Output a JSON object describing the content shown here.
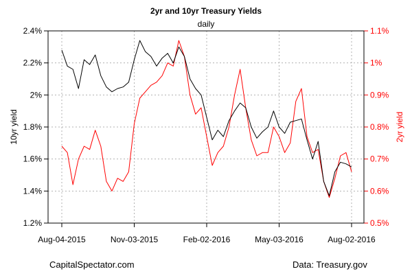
{
  "chart_data": {
    "type": "line",
    "title": "2yr and 10yr Treasury Yields",
    "subtitle": "daily",
    "ylabel_left": "10yr yield",
    "ylabel_right": "2yr yield",
    "grid": true,
    "x_ticks": [
      "Aug-04-2015",
      "Nov-03-2015",
      "Feb-02-2016",
      "May-03-2016",
      "Aug-02-2016"
    ],
    "y_left": {
      "range": [
        1.2,
        2.4
      ],
      "ticks": [
        "1.2%",
        "1.4%",
        "1.6%",
        "1.8%",
        "2%",
        "2.2%",
        "2.4%"
      ],
      "tick_values": [
        1.2,
        1.4,
        1.6,
        1.8,
        2.0,
        2.2,
        2.4
      ]
    },
    "y_right": {
      "range": [
        0.5,
        1.1
      ],
      "ticks": [
        "0.5%",
        "0.6%",
        "0.7%",
        "0.8%",
        "0.9%",
        "1%",
        "1.1%"
      ],
      "tick_values": [
        0.5,
        0.6,
        0.7,
        0.8,
        0.9,
        1.0,
        1.1
      ]
    },
    "series": [
      {
        "name": "10yr yield",
        "axis": "left",
        "color": "#000000",
        "dates": [
          "2015-08-04",
          "2015-08-11",
          "2015-08-18",
          "2015-08-25",
          "2015-09-01",
          "2015-09-08",
          "2015-09-15",
          "2015-09-22",
          "2015-09-29",
          "2015-10-06",
          "2015-10-13",
          "2015-10-20",
          "2015-10-27",
          "2015-11-03",
          "2015-11-10",
          "2015-11-17",
          "2015-11-24",
          "2015-12-01",
          "2015-12-08",
          "2015-12-15",
          "2015-12-22",
          "2015-12-29",
          "2016-01-05",
          "2016-01-12",
          "2016-01-19",
          "2016-01-26",
          "2016-02-02",
          "2016-02-09",
          "2016-02-16",
          "2016-02-23",
          "2016-03-01",
          "2016-03-08",
          "2016-03-15",
          "2016-03-22",
          "2016-03-29",
          "2016-04-05",
          "2016-04-12",
          "2016-04-19",
          "2016-04-26",
          "2016-05-03",
          "2016-05-10",
          "2016-05-17",
          "2016-05-24",
          "2016-05-31",
          "2016-06-07",
          "2016-06-14",
          "2016-06-21",
          "2016-06-28",
          "2016-07-05",
          "2016-07-12",
          "2016-07-19",
          "2016-07-26",
          "2016-08-02"
        ],
        "values": [
          2.28,
          2.18,
          2.16,
          2.04,
          2.22,
          2.19,
          2.25,
          2.12,
          2.05,
          2.02,
          2.04,
          2.05,
          2.08,
          2.22,
          2.34,
          2.27,
          2.24,
          2.18,
          2.23,
          2.26,
          2.2,
          2.3,
          2.24,
          2.1,
          2.04,
          2.0,
          1.86,
          1.72,
          1.78,
          1.74,
          1.84,
          1.9,
          1.95,
          1.92,
          1.8,
          1.73,
          1.77,
          1.8,
          1.9,
          1.8,
          1.76,
          1.83,
          1.84,
          1.85,
          1.72,
          1.6,
          1.71,
          1.46,
          1.37,
          1.52,
          1.58,
          1.57,
          1.55
        ]
      },
      {
        "name": "2yr yield",
        "axis": "right",
        "color": "#ff0000",
        "dates": [
          "2015-08-04",
          "2015-08-11",
          "2015-08-18",
          "2015-08-25",
          "2015-09-01",
          "2015-09-08",
          "2015-09-15",
          "2015-09-22",
          "2015-09-29",
          "2015-10-06",
          "2015-10-13",
          "2015-10-20",
          "2015-10-27",
          "2015-11-03",
          "2015-11-10",
          "2015-11-17",
          "2015-11-24",
          "2015-12-01",
          "2015-12-08",
          "2015-12-15",
          "2015-12-22",
          "2015-12-29",
          "2016-01-05",
          "2016-01-12",
          "2016-01-19",
          "2016-01-26",
          "2016-02-02",
          "2016-02-09",
          "2016-02-16",
          "2016-02-23",
          "2016-03-01",
          "2016-03-08",
          "2016-03-15",
          "2016-03-22",
          "2016-03-29",
          "2016-04-05",
          "2016-04-12",
          "2016-04-19",
          "2016-04-26",
          "2016-05-03",
          "2016-05-10",
          "2016-05-17",
          "2016-05-24",
          "2016-05-31",
          "2016-06-07",
          "2016-06-14",
          "2016-06-21",
          "2016-06-28",
          "2016-07-05",
          "2016-07-12",
          "2016-07-19",
          "2016-07-26",
          "2016-08-02"
        ],
        "values": [
          0.74,
          0.72,
          0.62,
          0.7,
          0.74,
          0.73,
          0.79,
          0.74,
          0.63,
          0.6,
          0.64,
          0.63,
          0.66,
          0.81,
          0.89,
          0.91,
          0.93,
          0.94,
          0.96,
          1.0,
          0.99,
          1.07,
          1.02,
          0.9,
          0.84,
          0.86,
          0.77,
          0.68,
          0.72,
          0.74,
          0.8,
          0.9,
          0.98,
          0.86,
          0.76,
          0.71,
          0.72,
          0.72,
          0.8,
          0.77,
          0.72,
          0.75,
          0.88,
          0.92,
          0.77,
          0.72,
          0.73,
          0.63,
          0.58,
          0.64,
          0.71,
          0.72,
          0.66
        ]
      }
    ]
  },
  "footer": {
    "source_left": "CapitalSpectator.com",
    "source_right": "Data: Treasury.gov"
  }
}
